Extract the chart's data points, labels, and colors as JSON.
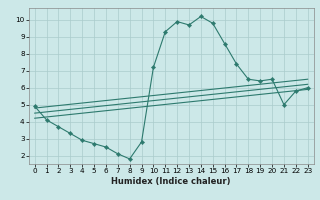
{
  "xlabel": "Humidex (Indice chaleur)",
  "bg_color": "#cce8e8",
  "grid_color": "#aacccc",
  "line_color": "#2d7a6e",
  "xlim": [
    -0.5,
    23.5
  ],
  "ylim": [
    1.5,
    10.7
  ],
  "xticks": [
    0,
    1,
    2,
    3,
    4,
    5,
    6,
    7,
    8,
    9,
    10,
    11,
    12,
    13,
    14,
    15,
    16,
    17,
    18,
    19,
    20,
    21,
    22,
    23
  ],
  "yticks": [
    2,
    3,
    4,
    5,
    6,
    7,
    8,
    9,
    10
  ],
  "line1_x": [
    0,
    1,
    2,
    3,
    4,
    5,
    6,
    7,
    8,
    9,
    10,
    11,
    12,
    13,
    14,
    15,
    16,
    17,
    18,
    19,
    20,
    21,
    22,
    23
  ],
  "line1_y": [
    4.9,
    4.1,
    3.7,
    3.3,
    2.9,
    2.7,
    2.5,
    2.1,
    1.8,
    2.8,
    7.2,
    9.3,
    9.9,
    9.7,
    10.2,
    9.8,
    8.6,
    7.4,
    6.5,
    6.4,
    6.5,
    5.0,
    5.8,
    6.0
  ],
  "line2_x": [
    0,
    23
  ],
  "line2_y": [
    4.8,
    6.5
  ],
  "line3_x": [
    0,
    23
  ],
  "line3_y": [
    4.5,
    6.2
  ],
  "line4_x": [
    0,
    23
  ],
  "line4_y": [
    4.2,
    5.9
  ],
  "xlabel_fontsize": 6.0,
  "tick_fontsize": 5.2
}
